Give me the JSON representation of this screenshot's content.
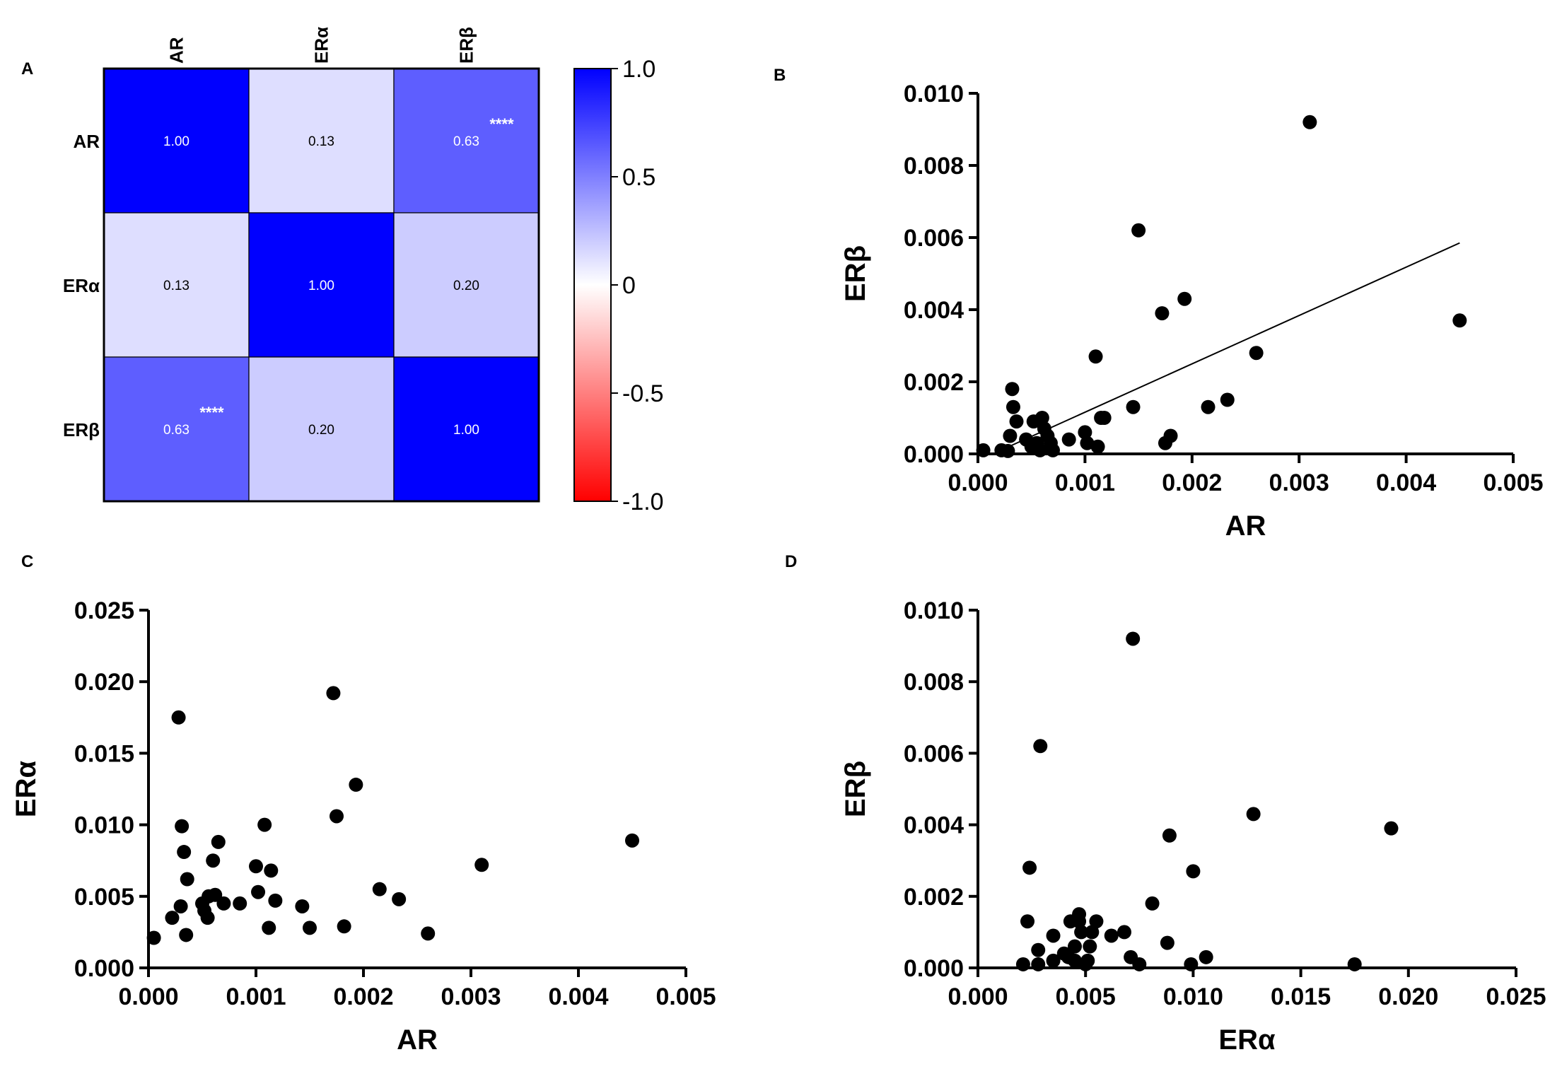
{
  "figure": {
    "background": "#ffffff",
    "text_color": "#000000"
  },
  "chart_data": [
    {
      "panel": "A",
      "type": "heatmap",
      "columns": [
        "AR",
        "ERα",
        "ERβ"
      ],
      "rows": [
        "AR",
        "ERα",
        "ERβ"
      ],
      "values": [
        [
          1.0,
          0.13,
          0.63
        ],
        [
          0.13,
          1.0,
          0.2
        ],
        [
          0.63,
          0.2,
          1.0
        ]
      ],
      "cell_labels": [
        [
          "1.00",
          "0.13",
          "0.63"
        ],
        [
          "0.13",
          "1.00",
          "0.20"
        ],
        [
          "0.63",
          "0.20",
          "1.00"
        ]
      ],
      "significance": [
        [
          "",
          "",
          "****"
        ],
        [
          "",
          "",
          ""
        ],
        [
          "****",
          "",
          ""
        ]
      ],
      "colorbar": {
        "range": [
          -1.0,
          1.0
        ],
        "ticks": [
          "1.0",
          "0.5",
          "0",
          "-0.5",
          "-1.0"
        ],
        "tick_values": [
          1.0,
          0.5,
          0,
          -0.5,
          -1.0
        ],
        "colors": {
          "positive": "#0000ff",
          "neutral": "#ffffff",
          "negative": "#ff0000"
        }
      }
    },
    {
      "panel": "B",
      "type": "scatter",
      "xlabel": "AR",
      "ylabel": "ERβ",
      "xlim": [
        0,
        0.005
      ],
      "ylim": [
        0,
        0.01
      ],
      "xticks": [
        "0.000",
        "0.001",
        "0.002",
        "0.003",
        "0.004",
        "0.005"
      ],
      "yticks": [
        "0.000",
        "0.002",
        "0.004",
        "0.006",
        "0.008",
        "0.010"
      ],
      "regression_line": {
        "x": [
          0.00025,
          0.0045
        ],
        "y": [
          0.00015,
          0.00585
        ]
      },
      "points": [
        [
          5e-05,
          0.0001
        ],
        [
          0.00022,
          0.0001
        ],
        [
          0.00028,
          8e-05
        ],
        [
          0.0003,
          0.0005
        ],
        [
          0.00032,
          0.0018
        ],
        [
          0.00033,
          0.0013
        ],
        [
          0.00036,
          0.0009
        ],
        [
          0.00045,
          0.0004
        ],
        [
          0.0005,
          0.0002
        ],
        [
          0.00052,
          0.0009
        ],
        [
          0.00055,
          0.0003
        ],
        [
          0.00058,
          0.0001
        ],
        [
          0.0006,
          0.001
        ],
        [
          0.00062,
          0.0007
        ],
        [
          0.00065,
          0.0005
        ],
        [
          0.00068,
          0.0003
        ],
        [
          0.0007,
          0.0001
        ],
        [
          0.00085,
          0.0004
        ],
        [
          0.001,
          0.0006
        ],
        [
          0.00102,
          0.0003
        ],
        [
          0.0011,
          0.0027
        ],
        [
          0.00112,
          0.0002
        ],
        [
          0.00115,
          0.001
        ],
        [
          0.00118,
          0.001
        ],
        [
          0.00145,
          0.0013
        ],
        [
          0.0015,
          0.0062
        ],
        [
          0.00172,
          0.0039
        ],
        [
          0.00175,
          0.0003
        ],
        [
          0.0018,
          0.0005
        ],
        [
          0.00193,
          0.0043
        ],
        [
          0.00215,
          0.0013
        ],
        [
          0.00233,
          0.0015
        ],
        [
          0.0026,
          0.0028
        ],
        [
          0.0031,
          0.0092
        ],
        [
          0.0045,
          0.0037
        ]
      ]
    },
    {
      "panel": "C",
      "type": "scatter",
      "xlabel": "AR",
      "ylabel": "ERα",
      "xlim": [
        0,
        0.005
      ],
      "ylim": [
        0,
        0.025
      ],
      "xticks": [
        "0.000",
        "0.001",
        "0.002",
        "0.003",
        "0.004",
        "0.005"
      ],
      "yticks": [
        "0.000",
        "0.005",
        "0.010",
        "0.015",
        "0.020",
        "0.025"
      ],
      "points": [
        [
          5e-05,
          0.0021
        ],
        [
          0.00022,
          0.0035
        ],
        [
          0.00028,
          0.0175
        ],
        [
          0.0003,
          0.0043
        ],
        [
          0.00031,
          0.0099
        ],
        [
          0.00033,
          0.0081
        ],
        [
          0.00035,
          0.0023
        ],
        [
          0.00036,
          0.0062
        ],
        [
          0.0005,
          0.0045
        ],
        [
          0.00052,
          0.004
        ],
        [
          0.00055,
          0.0035
        ],
        [
          0.00056,
          0.005
        ],
        [
          0.0006,
          0.0075
        ],
        [
          0.00062,
          0.0051
        ],
        [
          0.00065,
          0.0088
        ],
        [
          0.0007,
          0.0045
        ],
        [
          0.00085,
          0.0045
        ],
        [
          0.001,
          0.0071
        ],
        [
          0.00102,
          0.0053
        ],
        [
          0.00108,
          0.01
        ],
        [
          0.00112,
          0.0028
        ],
        [
          0.00114,
          0.0068
        ],
        [
          0.00118,
          0.0047
        ],
        [
          0.00143,
          0.0043
        ],
        [
          0.0015,
          0.0028
        ],
        [
          0.00172,
          0.0192
        ],
        [
          0.00175,
          0.0106
        ],
        [
          0.00182,
          0.0029
        ],
        [
          0.00193,
          0.0128
        ],
        [
          0.00215,
          0.0055
        ],
        [
          0.00233,
          0.0048
        ],
        [
          0.0026,
          0.0024
        ],
        [
          0.0031,
          0.0072
        ],
        [
          0.0045,
          0.0089
        ]
      ]
    },
    {
      "panel": "D",
      "type": "scatter",
      "xlabel": "ERα",
      "ylabel": "ERβ",
      "xlim": [
        0,
        0.025
      ],
      "ylim": [
        0,
        0.01
      ],
      "xticks": [
        "0.000",
        "0.005",
        "0.010",
        "0.015",
        "0.020",
        "0.025"
      ],
      "yticks": [
        "0.000",
        "0.002",
        "0.004",
        "0.006",
        "0.008",
        "0.010"
      ],
      "points": [
        [
          0.0021,
          0.0001
        ],
        [
          0.0023,
          0.0013
        ],
        [
          0.0024,
          0.0028
        ],
        [
          0.0028,
          0.0001
        ],
        [
          0.0028,
          0.0005
        ],
        [
          0.0029,
          0.0062
        ],
        [
          0.0035,
          0.0009
        ],
        [
          0.0035,
          0.0002
        ],
        [
          0.004,
          0.0004
        ],
        [
          0.0042,
          0.0003
        ],
        [
          0.0043,
          0.0013
        ],
        [
          0.0045,
          0.0006
        ],
        [
          0.0045,
          0.0002
        ],
        [
          0.0047,
          0.0013
        ],
        [
          0.0047,
          0.0015
        ],
        [
          0.0048,
          0.001
        ],
        [
          0.005,
          0.0001
        ],
        [
          0.0051,
          0.0002
        ],
        [
          0.0052,
          0.0006
        ],
        [
          0.0053,
          0.001
        ],
        [
          0.0055,
          0.0013
        ],
        [
          0.0062,
          0.0009
        ],
        [
          0.0068,
          0.001
        ],
        [
          0.0071,
          0.0003
        ],
        [
          0.0072,
          0.0092
        ],
        [
          0.0075,
          0.0001
        ],
        [
          0.0081,
          0.0018
        ],
        [
          0.0088,
          0.0007
        ],
        [
          0.0089,
          0.0037
        ],
        [
          0.0099,
          0.0001
        ],
        [
          0.01,
          0.0027
        ],
        [
          0.0106,
          0.0003
        ],
        [
          0.0128,
          0.0043
        ],
        [
          0.0175,
          0.0001
        ],
        [
          0.0192,
          0.0039
        ]
      ]
    }
  ]
}
